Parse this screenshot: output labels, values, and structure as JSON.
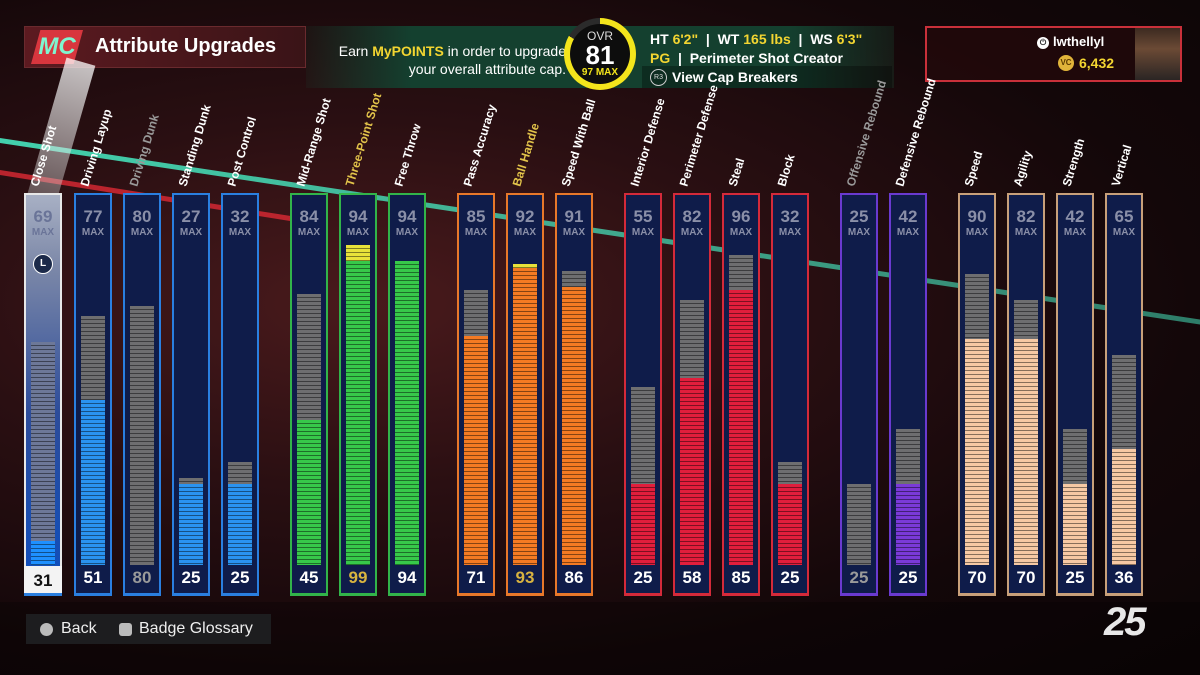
{
  "header": {
    "logo_text": "MC",
    "title": "Attribute Upgrades",
    "promo_prefix": "Earn ",
    "promo_highlight": "MyPOINTS",
    "promo_suffix": " in order to upgrade your overall attribute cap.",
    "ovr_label": "OVR",
    "ovr_value": "81",
    "max_value": "97",
    "max_label": "MAX",
    "ht_label": "HT",
    "ht_value": "6'2\"",
    "wt_label": "WT",
    "wt_value": "165 lbs",
    "ws_label": "WS",
    "ws_value": "6'3\"",
    "position": "PG",
    "archetype": "Perimeter Shot Creator",
    "cap_button_icon": "R3",
    "cap_button_label": "View Cap Breakers",
    "accent_color": "#f3d531"
  },
  "user": {
    "platform_icon": "playstation-icon",
    "username": "lwthellyl",
    "currency_icon": "VC",
    "currency_amount": "6,432"
  },
  "max_label": "MAX",
  "attributes": [
    {
      "name": "Close Shot",
      "max": 69,
      "current": 31,
      "group": "finishing",
      "color": "#1e90ff",
      "selected": true,
      "lock_label": "L"
    },
    {
      "name": "Driving Layup",
      "max": 77,
      "current": 51,
      "group": "finishing",
      "color": "#2a93f0"
    },
    {
      "name": "Driving Dunk",
      "max": 80,
      "current": 80,
      "group": "finishing",
      "color": "#2a93f0",
      "dimmed": true
    },
    {
      "name": "Standing Dunk",
      "max": 27,
      "current": 25,
      "group": "finishing",
      "color": "#2a93f0"
    },
    {
      "name": "Post Control",
      "max": 32,
      "current": 25,
      "group": "finishing",
      "color": "#2a93f0"
    },
    {
      "name": "Mid-Range Shot",
      "max": 84,
      "current": 45,
      "group": "shooting",
      "color": "#37c84a"
    },
    {
      "name": "Three-Point Shot",
      "max": 94,
      "current": 99,
      "group": "shooting",
      "color": "#37c84a",
      "capped": true
    },
    {
      "name": "Free Throw",
      "max": 94,
      "current": 94,
      "group": "shooting",
      "color": "#37c84a"
    },
    {
      "name": "Pass Accuracy",
      "max": 85,
      "current": 71,
      "group": "playmaking",
      "color": "#f47a23"
    },
    {
      "name": "Ball Handle",
      "max": 92,
      "current": 93,
      "group": "playmaking",
      "color": "#f47a23",
      "capped": true
    },
    {
      "name": "Speed With Ball",
      "max": 91,
      "current": 86,
      "group": "playmaking",
      "color": "#f47a23"
    },
    {
      "name": "Interior Defense",
      "max": 55,
      "current": 25,
      "group": "defense",
      "color": "#e01e3c"
    },
    {
      "name": "Perimeter Defense",
      "max": 82,
      "current": 58,
      "group": "defense",
      "color": "#e01e3c"
    },
    {
      "name": "Steal",
      "max": 96,
      "current": 85,
      "group": "defense",
      "color": "#e01e3c"
    },
    {
      "name": "Block",
      "max": 32,
      "current": 25,
      "group": "defense",
      "color": "#e01e3c"
    },
    {
      "name": "Offensive Rebound",
      "max": 25,
      "current": 25,
      "group": "rebounding",
      "color": "#7a3ad8",
      "dimmed": true
    },
    {
      "name": "Defensive Rebound",
      "max": 42,
      "current": 25,
      "group": "rebounding",
      "color": "#7a3ad8"
    },
    {
      "name": "Speed",
      "max": 90,
      "current": 70,
      "group": "physicals",
      "color": "#f6c8a4"
    },
    {
      "name": "Agility",
      "max": 82,
      "current": 70,
      "group": "physicals",
      "color": "#f6c8a4"
    },
    {
      "name": "Strength",
      "max": 42,
      "current": 25,
      "group": "physicals",
      "color": "#f6c8a4"
    },
    {
      "name": "Vertical",
      "max": 65,
      "current": 36,
      "group": "physicals",
      "color": "#f6c8a4"
    }
  ],
  "group_colors": {
    "finishing": "#2a7fe0",
    "shooting": "#32b44a",
    "playmaking": "#e8782a",
    "defense": "#d42a3a",
    "rebounding": "#6a3ad0",
    "physicals": "#c8a07a"
  },
  "footer": {
    "back_icon": "circle-button-icon",
    "back_label": "Back",
    "glossary_icon": "square-button-icon",
    "glossary_label": "Badge Glossary",
    "game_logo": "25"
  }
}
